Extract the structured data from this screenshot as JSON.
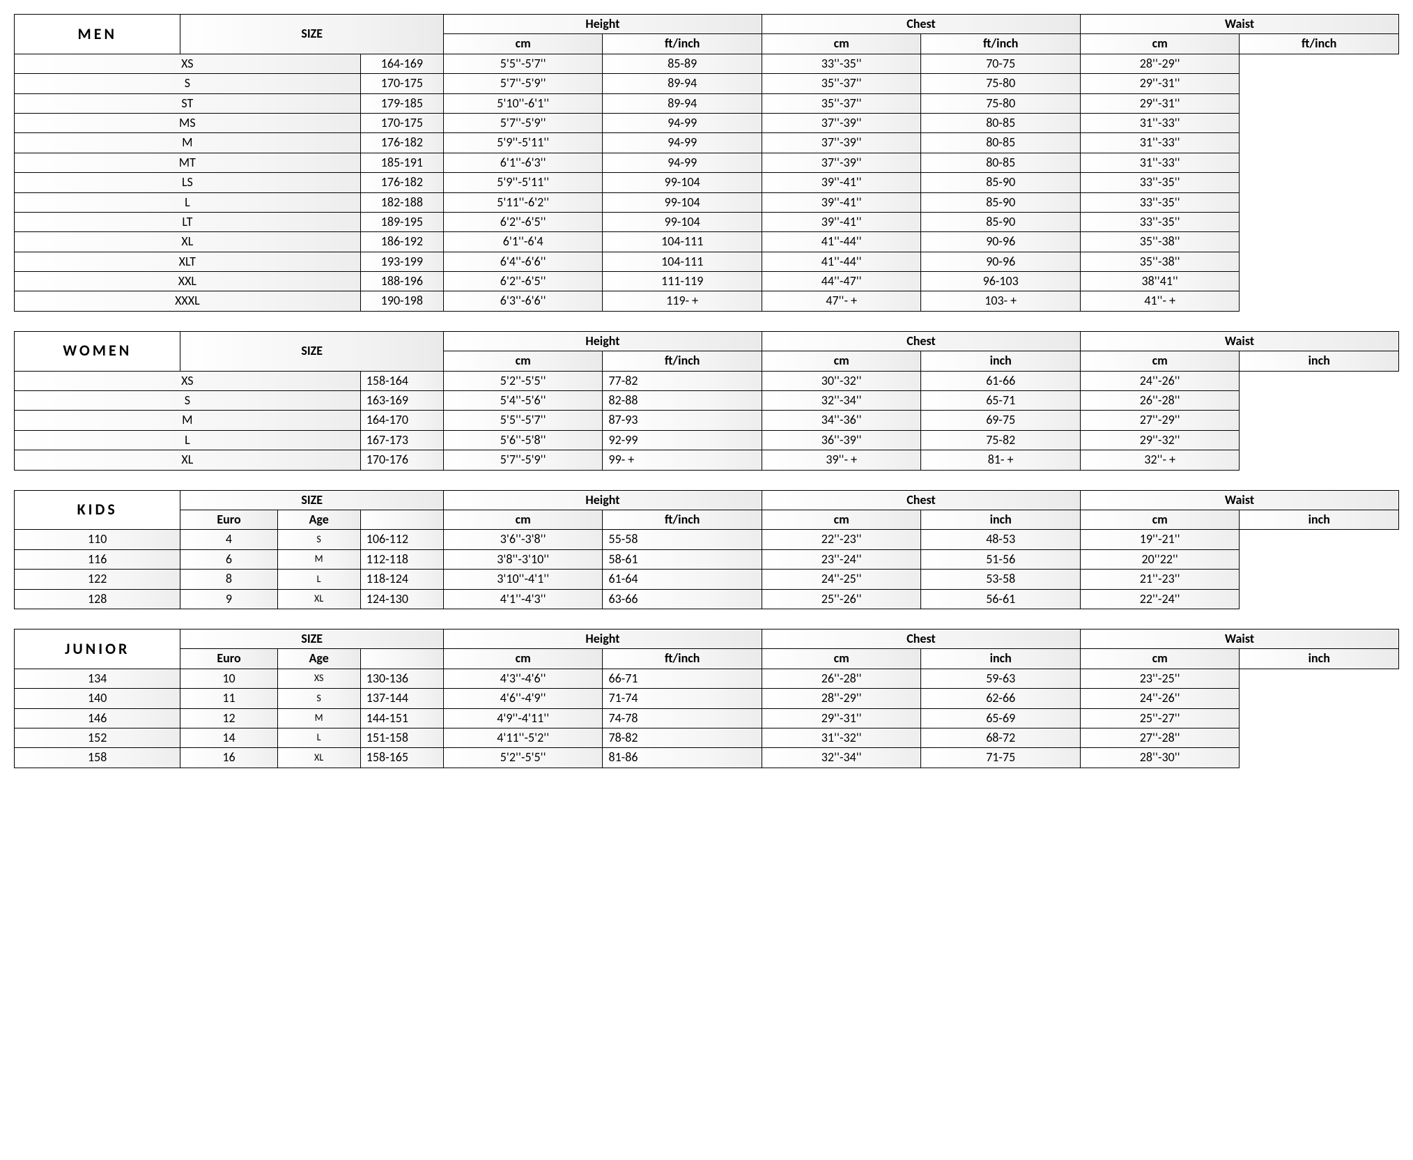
{
  "colors": {
    "border": "#000000",
    "text": "#000000",
    "bg": "#ffffff",
    "row_gradient_start": "#ffffff",
    "row_gradient_end": "#ededed"
  },
  "headers": {
    "size": "SIZE",
    "height": "Height",
    "chest": "Chest",
    "waist": "Waist",
    "cm": "cm",
    "ftinch": "ft/inch",
    "inch": "inch",
    "euro": "Euro",
    "age": "Age"
  },
  "men": {
    "label": "MEN",
    "rows": [
      {
        "size": "XS",
        "h_cm": "164-169",
        "h_fi": "5'5''-5'7''",
        "c_cm": "85-89",
        "c_fi": "33''-35''",
        "w_cm": "70-75",
        "w_fi": "28''-29''"
      },
      {
        "size": "S",
        "h_cm": "170-175",
        "h_fi": "5'7''-5'9''",
        "c_cm": "89-94",
        "c_fi": "35''-37''",
        "w_cm": "75-80",
        "w_fi": "29''-31''"
      },
      {
        "size": "ST",
        "h_cm": "179-185",
        "h_fi": "5'10''-6'1''",
        "c_cm": "89-94",
        "c_fi": "35''-37''",
        "w_cm": "75-80",
        "w_fi": "29''-31''"
      },
      {
        "size": "MS",
        "h_cm": "170-175",
        "h_fi": "5'7''-5'9''",
        "c_cm": "94-99",
        "c_fi": "37''-39''",
        "w_cm": "80-85",
        "w_fi": "31''-33''"
      },
      {
        "size": "M",
        "h_cm": "176-182",
        "h_fi": "5'9''-5'11''",
        "c_cm": "94-99",
        "c_fi": "37''-39''",
        "w_cm": "80-85",
        "w_fi": "31''-33''"
      },
      {
        "size": "MT",
        "h_cm": "185-191",
        "h_fi": "6'1''-6'3''",
        "c_cm": "94-99",
        "c_fi": "37''-39''",
        "w_cm": "80-85",
        "w_fi": "31''-33''"
      },
      {
        "size": "LS",
        "h_cm": "176-182",
        "h_fi": "5'9''-5'11''",
        "c_cm": "99-104",
        "c_fi": "39''-41''",
        "w_cm": "85-90",
        "w_fi": "33''-35''"
      },
      {
        "size": "L",
        "h_cm": "182-188",
        "h_fi": "5'11''-6'2''",
        "c_cm": "99-104",
        "c_fi": "39''-41''",
        "w_cm": "85-90",
        "w_fi": "33''-35''"
      },
      {
        "size": "LT",
        "h_cm": "189-195",
        "h_fi": "6'2''-6'5''",
        "c_cm": "99-104",
        "c_fi": "39''-41''",
        "w_cm": "85-90",
        "w_fi": "33''-35''"
      },
      {
        "size": "XL",
        "h_cm": "186-192",
        "h_fi": "6'1''-6'4",
        "c_cm": "104-111",
        "c_fi": "41''-44''",
        "w_cm": "90-96",
        "w_fi": "35''-38''"
      },
      {
        "size": "XLT",
        "h_cm": "193-199",
        "h_fi": "6'4''-6'6''",
        "c_cm": "104-111",
        "c_fi": "41''-44''",
        "w_cm": "90-96",
        "w_fi": "35''-38''"
      },
      {
        "size": "XXL",
        "h_cm": "188-196",
        "h_fi": "6'2''-6'5''",
        "c_cm": "111-119",
        "c_fi": "44''-47''",
        "w_cm": "96-103",
        "w_fi": "38''41''"
      },
      {
        "size": "XXXL",
        "h_cm": "190-198",
        "h_fi": "6'3''-6'6''",
        "c_cm": "119- +",
        "c_fi": "47''- +",
        "w_cm": "103- +",
        "w_fi": "41''- +"
      }
    ]
  },
  "women": {
    "label": "WOMEN",
    "rows": [
      {
        "size": "XS",
        "h_cm": "158-164",
        "h_fi": "5'2''-5'5''",
        "c_cm": "77-82",
        "c_fi": "30''-32''",
        "w_cm": "61-66",
        "w_fi": "24''-26''"
      },
      {
        "size": "S",
        "h_cm": "163-169",
        "h_fi": "5'4''-5'6''",
        "c_cm": "82-88",
        "c_fi": "32''-34''",
        "w_cm": "65-71",
        "w_fi": "26''-28''"
      },
      {
        "size": "M",
        "h_cm": "164-170",
        "h_fi": "5'5''-5'7''",
        "c_cm": "87-93",
        "c_fi": "34''-36''",
        "w_cm": "69-75",
        "w_fi": "27''-29''"
      },
      {
        "size": "L",
        "h_cm": "167-173",
        "h_fi": "5'6''-5'8''",
        "c_cm": "92-99",
        "c_fi": "36''-39''",
        "w_cm": "75-82",
        "w_fi": "29''-32''"
      },
      {
        "size": "XL",
        "h_cm": "170-176",
        "h_fi": "5'7''-5'9''",
        "c_cm": "99- +",
        "c_fi": "39''- +",
        "w_cm": "81- +",
        "w_fi": "32''- +"
      }
    ]
  },
  "kids": {
    "label": "KIDS",
    "rows": [
      {
        "euro": "110",
        "age": "4",
        "sz": "S",
        "h_cm": "106-112",
        "h_fi": "3'6''-3'8''",
        "c_cm": "55-58",
        "c_fi": "22''-23''",
        "w_cm": "48-53",
        "w_fi": "19''-21''"
      },
      {
        "euro": "116",
        "age": "6",
        "sz": "M",
        "h_cm": "112-118",
        "h_fi": "3'8''-3'10''",
        "c_cm": "58-61",
        "c_fi": "23''-24''",
        "w_cm": "51-56",
        "w_fi": "20''22''"
      },
      {
        "euro": "122",
        "age": "8",
        "sz": "L",
        "h_cm": "118-124",
        "h_fi": "3'10''-4'1''",
        "c_cm": "61-64",
        "c_fi": "24''-25''",
        "w_cm": "53-58",
        "w_fi": "21''-23''"
      },
      {
        "euro": "128",
        "age": "9",
        "sz": "XL",
        "h_cm": "124-130",
        "h_fi": "4'1''-4'3''",
        "c_cm": "63-66",
        "c_fi": "25''-26''",
        "w_cm": "56-61",
        "w_fi": "22''-24''"
      }
    ]
  },
  "junior": {
    "label": "JUNIOR",
    "rows": [
      {
        "euro": "134",
        "age": "10",
        "sz": "XS",
        "h_cm": "130-136",
        "h_fi": "4'3''-4'6''",
        "c_cm": "66-71",
        "c_fi": "26''-28''",
        "w_cm": "59-63",
        "w_fi": "23''-25''"
      },
      {
        "euro": "140",
        "age": "11",
        "sz": "S",
        "h_cm": "137-144",
        "h_fi": "4'6''-4'9''",
        "c_cm": "71-74",
        "c_fi": "28''-29''",
        "w_cm": "62-66",
        "w_fi": "24''-26''"
      },
      {
        "euro": "146",
        "age": "12",
        "sz": "M",
        "h_cm": "144-151",
        "h_fi": "4'9''-4'11''",
        "c_cm": "74-78",
        "c_fi": "29''-31''",
        "w_cm": "65-69",
        "w_fi": "25''-27''"
      },
      {
        "euro": "152",
        "age": "14",
        "sz": "L",
        "h_cm": "151-158",
        "h_fi": "4'11''-5'2''",
        "c_cm": "78-82",
        "c_fi": "31''-32''",
        "w_cm": "68-72",
        "w_fi": "27''-28''"
      },
      {
        "euro": "158",
        "age": "16",
        "sz": "XL",
        "h_cm": "158-165",
        "h_fi": "5'2''-5'5''",
        "c_cm": "81-86",
        "c_fi": "32''-34''",
        "w_cm": "71-75",
        "w_fi": "28''-30''"
      }
    ]
  }
}
